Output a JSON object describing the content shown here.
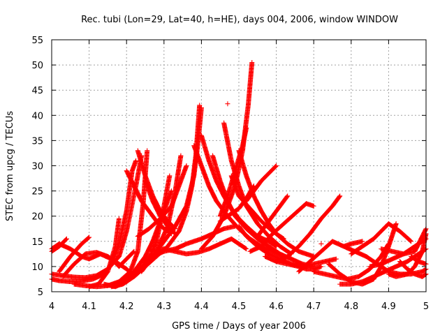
{
  "chart_data": {
    "type": "scatter",
    "title": "Rec. tubi (Lon=29, Lat=40, h=HE), days 004, 2006, window WINDOW",
    "xlabel": "GPS time / Days of year 2006",
    "ylabel": "STEC from upcg / TECUs",
    "xlim": [
      4,
      5
    ],
    "ylim": [
      5,
      55
    ],
    "x_ticks": [
      "4",
      "4.1",
      "4.2",
      "4.3",
      "4.4",
      "4.5",
      "4.6",
      "4.7",
      "4.8",
      "4.9",
      "5"
    ],
    "y_ticks": [
      "5",
      "10",
      "15",
      "20",
      "25",
      "30",
      "35",
      "40",
      "45",
      "50",
      "55"
    ],
    "grid": true,
    "marker": "+",
    "color": "#ff0000",
    "series": [
      {
        "x": [
          4.0,
          4.02,
          4.05,
          4.08,
          4.11,
          4.14,
          4.16,
          4.18,
          4.2,
          4.215,
          4.225
        ],
        "y": [
          7.5,
          7.2,
          7.0,
          7.1,
          7.5,
          8.5,
          10.5,
          14.5,
          21.0,
          29.0,
          31.0
        ]
      },
      {
        "x": [
          4.0,
          4.03,
          4.06,
          4.09,
          4.12,
          4.15,
          4.18,
          4.2,
          4.225,
          4.24
        ],
        "y": [
          8.5,
          8.2,
          7.9,
          7.8,
          8.2,
          9.5,
          12.0,
          17.0,
          26.0,
          32.0
        ]
      },
      {
        "x": [
          4.06,
          4.09,
          4.12,
          4.15,
          4.18,
          4.21,
          4.23,
          4.245,
          4.255
        ],
        "y": [
          6.5,
          6.2,
          6.0,
          6.2,
          7.0,
          9.0,
          13.0,
          23.0,
          33.0
        ]
      },
      {
        "x": [
          4.0,
          4.02,
          4.05,
          4.08,
          4.1,
          4.13,
          4.16,
          4.18,
          4.2,
          4.22
        ],
        "y": [
          13.5,
          14.5,
          13.5,
          12.0,
          11.5,
          12.5,
          11.5,
          10.0,
          11.5,
          13.0
        ]
      },
      {
        "x": [
          4.0,
          4.02,
          4.04
        ],
        "y": [
          13.0,
          14.0,
          15.5
        ]
      },
      {
        "x": [
          4.03,
          4.06,
          4.09,
          4.12,
          4.15,
          4.18,
          4.2,
          4.215
        ],
        "y": [
          8.0,
          10.5,
          12.5,
          12.8,
          12.0,
          10.5,
          9.5,
          8.5
        ]
      },
      {
        "x": [
          4.02,
          4.05,
          4.08,
          4.1
        ],
        "y": [
          9.0,
          12.0,
          14.5,
          15.8
        ]
      },
      {
        "x": [
          4.1,
          4.125,
          4.15,
          4.17,
          4.18
        ],
        "y": [
          6.0,
          6.5,
          9.0,
          14.0,
          19.5
        ]
      },
      {
        "x": [
          4.14,
          4.17,
          4.2,
          4.23,
          4.26,
          4.28,
          4.3,
          4.315
        ],
        "y": [
          6.5,
          6.0,
          7.0,
          9.0,
          11.5,
          15.0,
          22.0,
          28.0
        ]
      },
      {
        "x": [
          4.16,
          4.19,
          4.22,
          4.25,
          4.28,
          4.31,
          4.33,
          4.345
        ],
        "y": [
          6.0,
          6.5,
          8.0,
          10.0,
          13.0,
          18.0,
          25.0,
          32.0
        ]
      },
      {
        "x": [
          4.19,
          4.22,
          4.25,
          4.27,
          4.29,
          4.31,
          4.32
        ],
        "y": [
          7.0,
          9.0,
          12.0,
          15.0,
          19.0,
          23.0,
          25.0
        ]
      },
      {
        "x": [
          4.22,
          4.25,
          4.28,
          4.31,
          4.34,
          4.36,
          4.375,
          4.385,
          4.395
        ],
        "y": [
          8.0,
          10.0,
          12.0,
          14.0,
          17.0,
          21.0,
          26.0,
          32.0,
          42.0
        ]
      },
      {
        "x": [
          4.24,
          4.27,
          4.3,
          4.33,
          4.36,
          4.38,
          4.39,
          4.4
        ],
        "y": [
          9.0,
          12.0,
          15.0,
          18.0,
          22.0,
          28.0,
          34.0,
          41.5
        ]
      },
      {
        "x": [
          4.23,
          4.26,
          4.29,
          4.32,
          4.34,
          4.36
        ],
        "y": [
          16.0,
          17.5,
          19.5,
          22.0,
          26.0,
          30.0
        ]
      },
      {
        "x": [
          4.2,
          4.22,
          4.24,
          4.26,
          4.28,
          4.3,
          4.32
        ],
        "y": [
          29.0,
          26.0,
          23.0,
          21.0,
          19.0,
          17.5,
          16.5
        ]
      },
      {
        "x": [
          4.23,
          4.25,
          4.27,
          4.29,
          4.31,
          4.33
        ],
        "y": [
          33.0,
          28.0,
          24.0,
          21.0,
          19.0,
          17.5
        ]
      },
      {
        "x": [
          4.25,
          4.27,
          4.29,
          4.31,
          4.33
        ],
        "y": [
          27.0,
          23.0,
          20.0,
          18.0,
          16.5
        ]
      },
      {
        "x": [
          4.28,
          4.3,
          4.33,
          4.36,
          4.39,
          4.42,
          4.45,
          4.48,
          4.5,
          4.52
        ],
        "y": [
          13.0,
          13.5,
          13.0,
          12.5,
          12.8,
          13.5,
          14.5,
          15.5,
          14.5,
          13.5
        ]
      },
      {
        "x": [
          4.24,
          4.27,
          4.3,
          4.33,
          4.36,
          4.4,
          4.43,
          4.46,
          4.49
        ],
        "y": [
          11.0,
          12.0,
          13.0,
          13.5,
          14.5,
          15.5,
          16.5,
          17.5,
          18.0
        ]
      },
      {
        "x": [
          4.4,
          4.42,
          4.44,
          4.46,
          4.48,
          4.5,
          4.52,
          4.55,
          4.58,
          4.6
        ],
        "y": [
          36.0,
          31.0,
          27.0,
          24.0,
          21.5,
          19.5,
          18.0,
          16.0,
          15.0,
          14.0
        ]
      },
      {
        "x": [
          4.38,
          4.4,
          4.42,
          4.44,
          4.47,
          4.5,
          4.53,
          4.56,
          4.59,
          4.62
        ],
        "y": [
          34.0,
          30.0,
          26.0,
          23.0,
          20.0,
          17.5,
          15.5,
          14.0,
          13.0,
          12.0
        ]
      },
      {
        "x": [
          4.43,
          4.45,
          4.47,
          4.49,
          4.52,
          4.55,
          4.58,
          4.61,
          4.64,
          4.67,
          4.7
        ],
        "y": [
          32.0,
          27.0,
          23.0,
          20.0,
          17.5,
          15.5,
          14.0,
          12.5,
          11.5,
          10.5,
          10.0
        ]
      },
      {
        "x": [
          4.46,
          4.48,
          4.5,
          4.52,
          4.55,
          4.58,
          4.61,
          4.64
        ],
        "y": [
          38.5,
          31.0,
          26.0,
          22.0,
          18.5,
          16.0,
          14.0,
          12.5
        ]
      },
      {
        "x": [
          4.4,
          4.43,
          4.46,
          4.49,
          4.51,
          4.525,
          4.535
        ],
        "y": [
          13.5,
          16.0,
          20.0,
          26.0,
          33.0,
          42.0,
          50.5
        ]
      },
      {
        "x": [
          4.45,
          4.47,
          4.49,
          4.51,
          4.52
        ],
        "y": [
          20.0,
          24.0,
          29.0,
          34.0,
          37.5
        ]
      },
      {
        "x": [
          4.5,
          4.52,
          4.54,
          4.56,
          4.58,
          4.6,
          4.63,
          4.66,
          4.7
        ],
        "y": [
          33.0,
          28.0,
          24.0,
          21.0,
          18.5,
          16.5,
          14.5,
          13.0,
          12.0
        ]
      },
      {
        "x": [
          4.5,
          4.52,
          4.55,
          4.58,
          4.61,
          4.64,
          4.67,
          4.7,
          4.73,
          4.76
        ],
        "y": [
          18.0,
          16.0,
          14.0,
          12.5,
          11.5,
          10.5,
          10.0,
          10.5,
          11.0,
          11.5
        ]
      },
      {
        "x": [
          4.48,
          4.5,
          4.53,
          4.56,
          4.59,
          4.62
        ],
        "y": [
          28.0,
          24.0,
          21.5,
          19.0,
          17.0,
          15.5
        ]
      },
      {
        "x": [
          4.52,
          4.54,
          4.56,
          4.58,
          4.6
        ],
        "y": [
          23.0,
          25.0,
          27.0,
          28.5,
          30.0
        ]
      },
      {
        "x": [
          4.53,
          4.56,
          4.59,
          4.62,
          4.65,
          4.68,
          4.7
        ],
        "y": [
          13.0,
          14.0,
          16.5,
          18.5,
          20.5,
          22.5,
          22.0
        ]
      },
      {
        "x": [
          4.55,
          4.58,
          4.61,
          4.63
        ],
        "y": [
          16.0,
          19.0,
          22.0,
          24.0
        ]
      },
      {
        "x": [
          4.6,
          4.63,
          4.66,
          4.69,
          4.72,
          4.75,
          4.77
        ],
        "y": [
          11.0,
          12.0,
          14.0,
          16.5,
          19.5,
          22.0,
          24.0
        ]
      },
      {
        "x": [
          4.57,
          4.6,
          4.63,
          4.66,
          4.68,
          4.7,
          4.72
        ],
        "y": [
          12.0,
          11.0,
          10.5,
          10.0,
          9.5,
          9.5,
          10.0
        ]
      },
      {
        "x": [
          4.66,
          4.69,
          4.72,
          4.75,
          4.78,
          4.8,
          4.83
        ],
        "y": [
          9.0,
          11.0,
          13.0,
          15.0,
          14.0,
          14.5,
          15.0
        ]
      },
      {
        "x": [
          4.7,
          4.73,
          4.76,
          4.79,
          4.82,
          4.85,
          4.88,
          4.9
        ],
        "y": [
          9.0,
          8.5,
          8.0,
          7.5,
          8.0,
          9.5,
          12.0,
          14.5
        ]
      },
      {
        "x": [
          4.74,
          4.77,
          4.8,
          4.83,
          4.86,
          4.88,
          4.9,
          4.92
        ],
        "y": [
          10.5,
          8.5,
          7.0,
          6.5,
          7.5,
          10.0,
          14.0,
          18.5
        ]
      },
      {
        "x": [
          4.78,
          4.81,
          4.84,
          4.87,
          4.9,
          4.93,
          4.96,
          4.99,
          5.0
        ],
        "y": [
          14.0,
          13.0,
          12.0,
          10.5,
          9.0,
          8.5,
          8.5,
          9.0,
          9.5
        ]
      },
      {
        "x": [
          4.8,
          4.83,
          4.86,
          4.88,
          4.9,
          4.93,
          4.96
        ],
        "y": [
          12.5,
          14.0,
          15.5,
          17.0,
          18.5,
          17.0,
          15.0
        ]
      },
      {
        "x": [
          4.77,
          4.8,
          4.83,
          4.86,
          4.89,
          4.92,
          4.95,
          4.98,
          5.0
        ],
        "y": [
          6.5,
          6.5,
          7.0,
          8.0,
          9.0,
          10.0,
          11.0,
          12.5,
          13.5
        ]
      },
      {
        "x": [
          4.85,
          4.88,
          4.91,
          4.94,
          4.97,
          5.0
        ],
        "y": [
          10.0,
          10.5,
          11.5,
          12.5,
          14.0,
          15.5
        ]
      },
      {
        "x": [
          4.88,
          4.91,
          4.94,
          4.97,
          5.0
        ],
        "y": [
          13.5,
          13.0,
          12.5,
          13.0,
          17.5
        ]
      },
      {
        "x": [
          4.9,
          4.92,
          4.95,
          4.97,
          4.99,
          5.0
        ],
        "y": [
          8.5,
          8.0,
          8.5,
          10.0,
          13.0,
          16.5
        ]
      },
      {
        "x": [
          4.93,
          4.95,
          4.97,
          4.99,
          5.0
        ],
        "y": [
          11.0,
          9.5,
          8.5,
          8.0,
          8.5
        ]
      },
      {
        "x": [
          4.96,
          4.98,
          5.0
        ],
        "y": [
          12.0,
          11.0,
          10.5
        ]
      },
      {
        "x": [
          4.45,
          4.47,
          4.5,
          4.52,
          4.54
        ],
        "y": [
          19.0,
          20.0,
          21.5,
          23.5,
          26.0
        ]
      }
    ],
    "isolated_points": {
      "x": [
        4.47,
        4.72
      ],
      "y": [
        42.3,
        14.5
      ]
    }
  }
}
